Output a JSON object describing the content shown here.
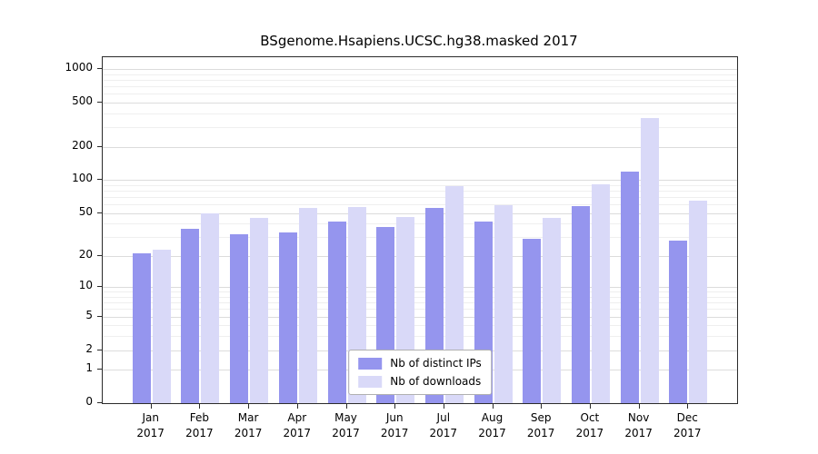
{
  "chart_data": {
    "type": "bar",
    "title": "BSgenome.Hsapiens.UCSC.hg38.masked 2017",
    "scale": "log10(1+x)",
    "categories": [
      "Jan",
      "Feb",
      "Mar",
      "Apr",
      "May",
      "Jun",
      "Jul",
      "Aug",
      "Sep",
      "Oct",
      "Nov",
      "Dec"
    ],
    "year": "2017",
    "series": [
      {
        "name": "Nb of distinct IPs",
        "color": "#9595ee",
        "values": [
          21,
          36,
          32,
          33,
          42,
          37,
          56,
          42,
          29,
          58,
          120,
          28
        ]
      },
      {
        "name": "Nb of downloads",
        "color": "#d9d9f8",
        "values": [
          23,
          50,
          45,
          56,
          57,
          46,
          88,
          59,
          45,
          92,
          360,
          65
        ]
      }
    ],
    "yticks": [
      0,
      1,
      2,
      5,
      10,
      20,
      50,
      100,
      200,
      500,
      1000
    ],
    "minor_ticks": [
      3,
      4,
      6,
      7,
      8,
      9,
      30,
      40,
      60,
      70,
      80,
      90,
      300,
      400,
      600,
      700,
      800,
      900
    ],
    "ylim": [
      0,
      1280
    ],
    "grid": true,
    "legend_position": "bottom-center"
  }
}
